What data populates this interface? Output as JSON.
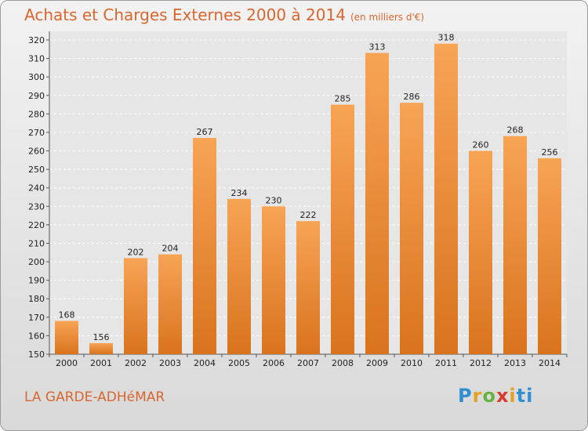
{
  "title": "Achats et Charges Externes 2000 à 2014",
  "subtitle": "(en milliers d'€)",
  "commune": "LA GARDE-ADHéMAR",
  "logo": [
    "P",
    "r",
    "o",
    "x",
    "i",
    "ti"
  ],
  "colors": {
    "bar_top": "#f7a455",
    "bar_bottom": "#d9731e",
    "title": "#d9662f"
  },
  "chart_data": {
    "type": "bar",
    "title": "Achats et Charges Externes 2000 à 2014",
    "subtitle": "(en milliers d'€)",
    "categories": [
      "2000",
      "2001",
      "2002",
      "2003",
      "2004",
      "2005",
      "2006",
      "2007",
      "2008",
      "2009",
      "2010",
      "2011",
      "2012",
      "2013",
      "2014"
    ],
    "values": [
      168,
      156,
      202,
      204,
      267,
      234,
      230,
      222,
      285,
      313,
      286,
      318,
      260,
      268,
      256
    ],
    "xlabel": "",
    "ylabel": "",
    "ylim": [
      150,
      320
    ],
    "yticks": [
      150,
      160,
      170,
      180,
      190,
      200,
      210,
      220,
      230,
      240,
      250,
      260,
      270,
      280,
      290,
      300,
      310,
      320
    ],
    "grid": true,
    "legend": "none"
  }
}
